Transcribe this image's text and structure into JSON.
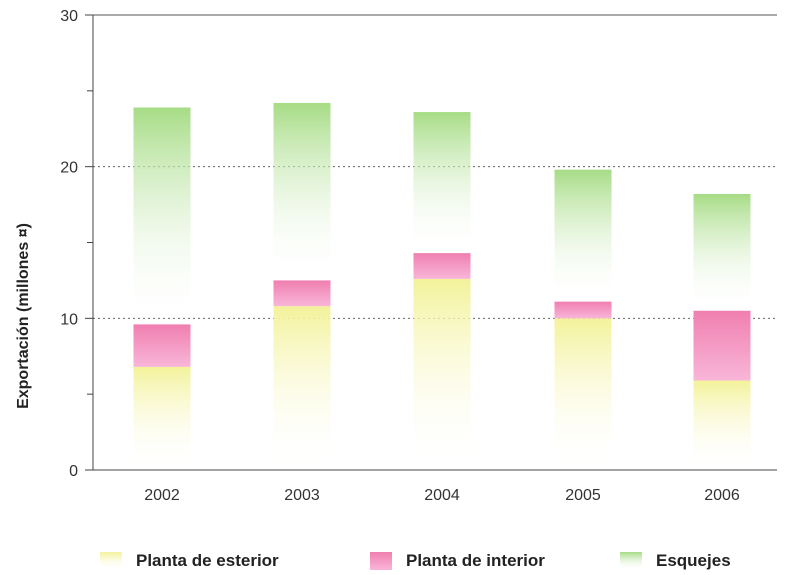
{
  "chart_data": {
    "type": "bar",
    "stacked": true,
    "categories": [
      "2002",
      "2003",
      "2004",
      "2005",
      "2006"
    ],
    "series": [
      {
        "name": "Planta de esterior",
        "values": [
          6.8,
          10.8,
          12.6,
          10.0,
          5.9
        ],
        "color": "#f3f29a"
      },
      {
        "name": "Planta de interior",
        "values": [
          2.8,
          1.7,
          1.7,
          1.1,
          4.6
        ],
        "color": "#f07fb0"
      },
      {
        "name": "Esquejes",
        "values": [
          14.3,
          11.7,
          9.3,
          8.7,
          7.7
        ],
        "color": "#a6dc85"
      }
    ],
    "title": "",
    "xlabel": "",
    "ylabel": "Exportación (millones ¤)",
    "ylim": [
      0,
      30
    ],
    "yticks": [
      0,
      10,
      20,
      30
    ],
    "grid": "dotted-major",
    "legend_position": "bottom"
  }
}
